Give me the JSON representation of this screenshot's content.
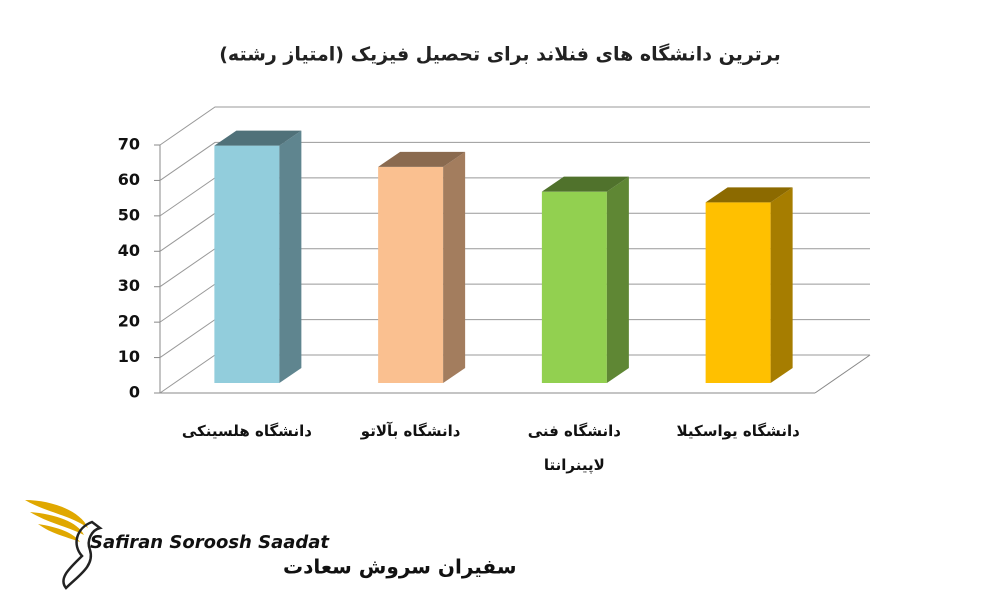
{
  "chart_data": {
    "type": "bar3d",
    "title": "برترین دانشگاه های فنلاند برای تحصیل فیزیک (امتیاز رشته)",
    "categories": [
      "دانشگاه هلسینکی",
      "دانشگاه بآلاتو",
      "دانشگاه فنی لاپینرانتا",
      "دانشگاه یواسکیلا"
    ],
    "values": [
      67,
      61,
      54,
      51
    ],
    "colors": [
      "#92cddc",
      "#fac090",
      "#92d050",
      "#ffc000"
    ],
    "ylim": [
      0,
      70
    ],
    "yticks": [
      0,
      10,
      20,
      30,
      40,
      50,
      60,
      70
    ],
    "grid": true
  },
  "logo": {
    "latin": "Safiran Soroosh Saadat",
    "persian": "سفیران سروش سعادت"
  }
}
